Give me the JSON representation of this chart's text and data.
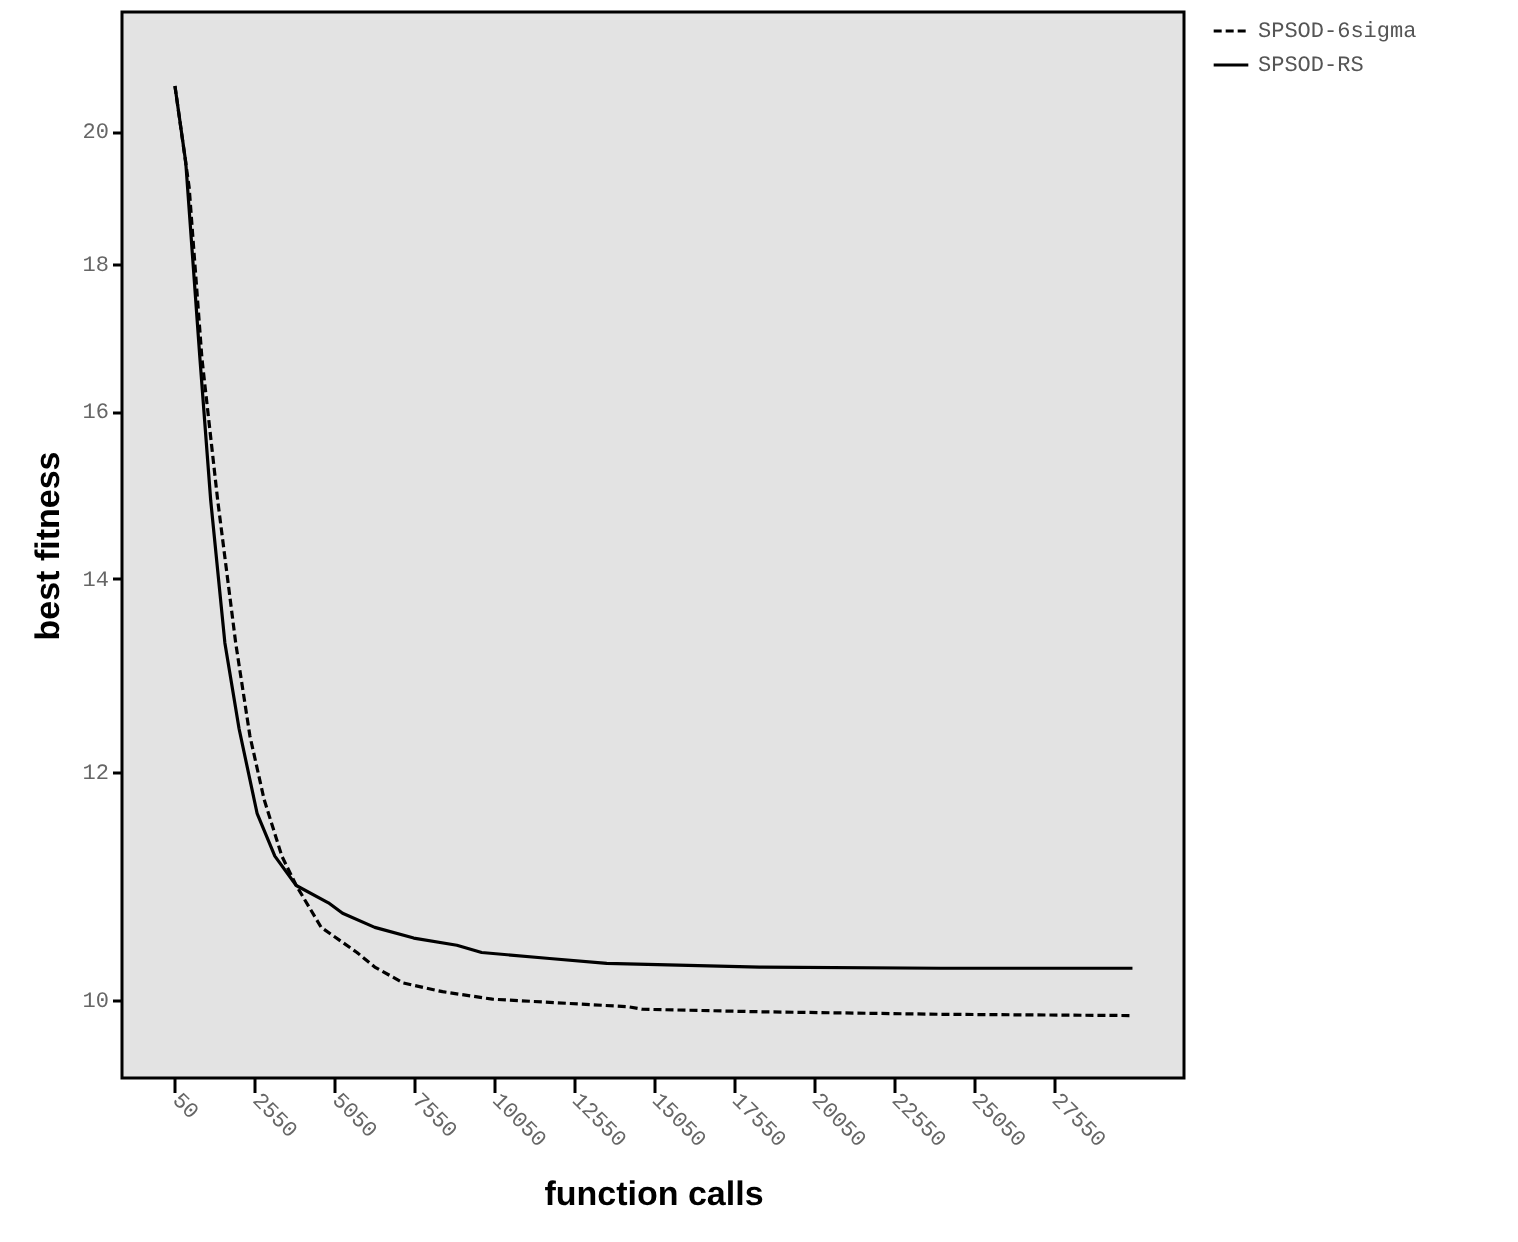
{
  "chart_data": {
    "type": "line",
    "xlabel": "function calls",
    "ylabel": "best fitness",
    "log": "y",
    "grid": false,
    "legend": "top right",
    "marker": "none",
    "xlim": [
      -1606,
      31612
    ],
    "xticks": [
      50,
      2550,
      5050,
      7550,
      10050,
      12550,
      15050,
      17550,
      20050,
      22550,
      25050,
      27550
    ],
    "ylim": [
      9.4,
      22
    ],
    "yticks": [
      10,
      12,
      14,
      16,
      18,
      20
    ],
    "series": [
      {
        "name": "SPSOD-6sigma",
        "color": "#000000",
        "line_style": "dashed",
        "x": [
          50,
          494,
          894,
          1388,
          1950,
          2394,
          2838,
          3394,
          3844,
          4625,
          5744,
          6300,
          7194,
          8419,
          9981,
          14225,
          14669,
          18331,
          24000,
          30000
        ],
        "values": [
          20.74,
          19.13,
          16.69,
          14.9,
          13.3,
          12.35,
          11.74,
          11.22,
          10.96,
          10.6,
          10.39,
          10.27,
          10.14,
          10.07,
          10.01,
          9.95,
          9.93,
          9.91,
          9.89,
          9.88
        ]
      },
      {
        "name": "SPSOD-RS",
        "color": "#000000",
        "line_style": "solid",
        "x": [
          50,
          387,
          831,
          1169,
          1612,
          2056,
          2619,
          3175,
          3844,
          4850,
          5294,
          6300,
          7519,
          8869,
          9644,
          11769,
          13556,
          18331,
          24000,
          30000
        ],
        "values": [
          20.74,
          19.52,
          16.69,
          14.9,
          13.3,
          12.42,
          11.61,
          11.22,
          10.96,
          10.81,
          10.72,
          10.6,
          10.51,
          10.45,
          10.39,
          10.34,
          10.3,
          10.27,
          10.26,
          10.26
        ]
      }
    ]
  }
}
